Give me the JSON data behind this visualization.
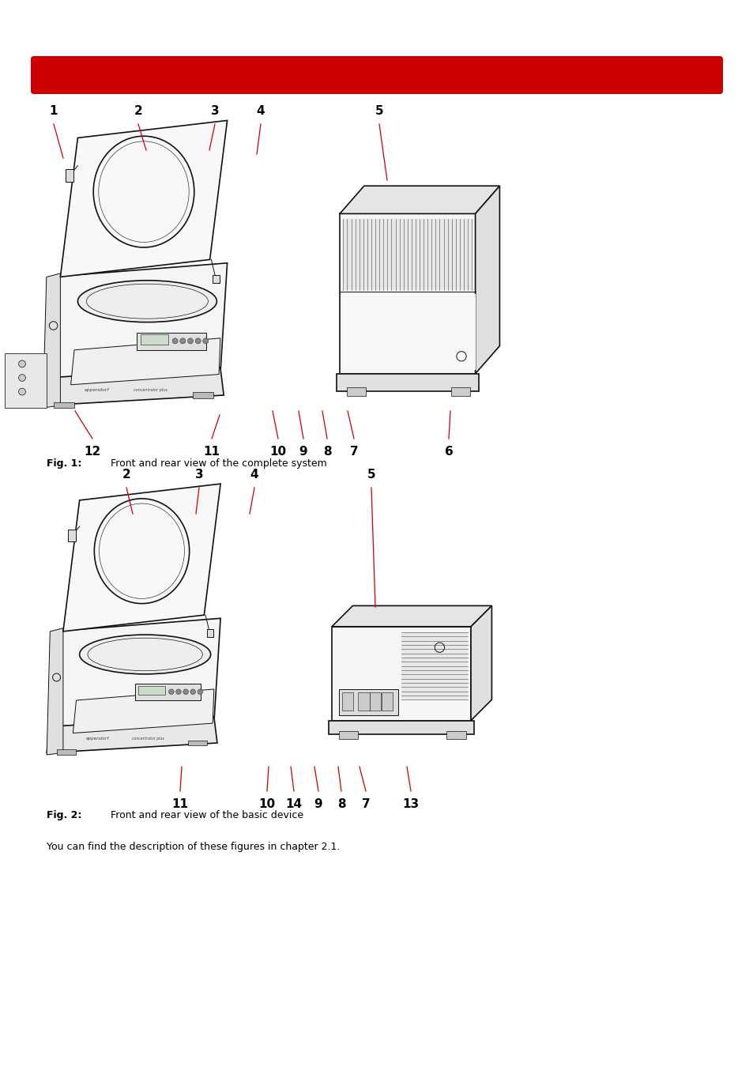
{
  "page_width": 9.54,
  "page_height": 13.5,
  "dpi": 100,
  "background_color": "#ffffff",
  "header_bar_color": "#cc0000",
  "label_color": "#000000",
  "line_color": "#cc0000",
  "device_color": "#111111",
  "fig1_caption": "Fig. 1:",
  "fig1_text": "Front and rear view of the complete system",
  "fig2_caption": "Fig. 2:",
  "fig2_text": "Front and rear view of the basic device",
  "footer_text": "You can find the description of these figures in chapter 2.1.",
  "label_fontsize": 11,
  "caption_fontsize": 9,
  "text_fontsize": 9
}
